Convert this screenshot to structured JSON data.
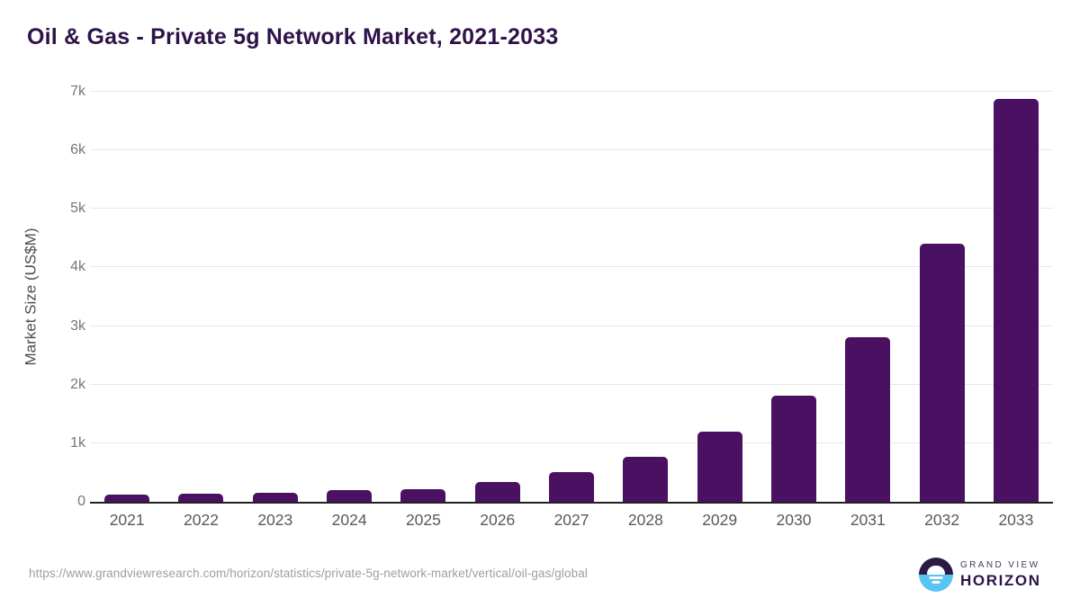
{
  "header": {
    "title": "Oil & Gas - Private 5g Network Market, 2021-2033"
  },
  "chart_data": {
    "type": "bar",
    "title": "Oil & Gas - Private 5g Network Market, 2021-2033",
    "categories": [
      "2021",
      "2022",
      "2023",
      "2024",
      "2025",
      "2026",
      "2027",
      "2028",
      "2029",
      "2030",
      "2031",
      "2032",
      "2033"
    ],
    "values": [
      120,
      140,
      155,
      195,
      220,
      340,
      505,
      770,
      1190,
      1815,
      2810,
      4400,
      6875
    ],
    "xlabel": "",
    "ylabel": "Market Size (US$M)",
    "ylim": [
      0,
      7000
    ],
    "yticks": [
      {
        "value": 0,
        "label": "0"
      },
      {
        "value": 1000,
        "label": "1k"
      },
      {
        "value": 2000,
        "label": "2k"
      },
      {
        "value": 3000,
        "label": "3k"
      },
      {
        "value": 4000,
        "label": "4k"
      },
      {
        "value": 5000,
        "label": "5k"
      },
      {
        "value": 6000,
        "label": "6k"
      },
      {
        "value": 7000,
        "label": "7k"
      }
    ],
    "grid": "horizontal-light",
    "legend": "none",
    "bar_color": "#4a1162"
  },
  "footer": {
    "source_url": "https://www.grandviewresearch.com/horizon/statistics/private-5g-network-market/vertical/oil-gas/global",
    "logo": {
      "top": "GRAND VIEW",
      "bottom": "HORIZON"
    }
  },
  "colors": {
    "bar-color": "#4a1162",
    "title-color": "#2e1248",
    "grid-color": "#e8e8e8",
    "axis-line-color": "#212121",
    "tick-label-color": "#595959"
  }
}
